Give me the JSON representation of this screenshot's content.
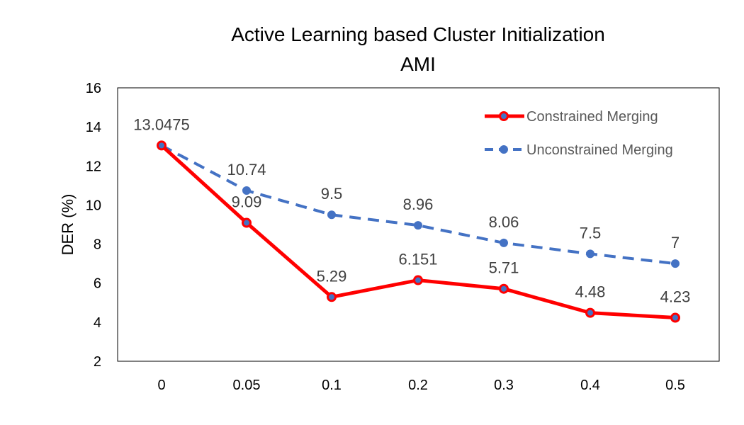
{
  "chart_data": {
    "type": "line",
    "title": "Active Learning based Cluster Initialization",
    "subtitle": "AMI",
    "xlabel": "",
    "ylabel": "DER (%)",
    "categories": [
      "0",
      "0.05",
      "0.1",
      "0.2",
      "0.3",
      "0.4",
      "0.5"
    ],
    "ylim": [
      2,
      16
    ],
    "yticks": [
      "2",
      "4",
      "6",
      "8",
      "10",
      "12",
      "14",
      "16"
    ],
    "grid": false,
    "legend_position": "top-right",
    "series": [
      {
        "name": "Constrained Merging",
        "values": [
          13.0475,
          9.09,
          5.29,
          6.151,
          5.71,
          4.48,
          4.23
        ],
        "labels": [
          "13.0475",
          "9.09",
          "5.29",
          "6.151",
          "5.71",
          "4.48",
          "4.23"
        ],
        "color": "#FF0000",
        "style": "solid"
      },
      {
        "name": "Unconstrained Merging",
        "values": [
          13.0475,
          10.74,
          9.5,
          8.96,
          8.06,
          7.5,
          7
        ],
        "labels": [
          "",
          "10.74",
          "9.5",
          "8.96",
          "8.06",
          "7.5",
          "7"
        ],
        "color": "#4472C4",
        "style": "dashed"
      }
    ]
  }
}
